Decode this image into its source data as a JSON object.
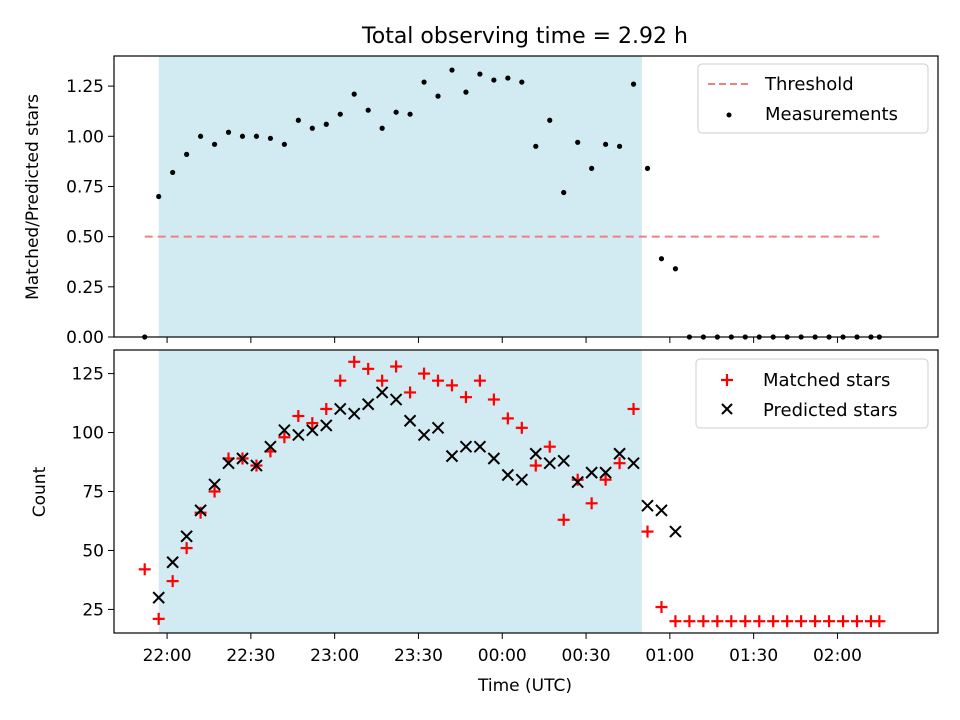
{
  "figure": {
    "title": "Total observing time = 2.92 h",
    "xlabel": "Time (UTC)",
    "x_ticks": [
      "22:00",
      "22:30",
      "23:00",
      "23:30",
      "00:00",
      "00:30",
      "01:00",
      "01:30",
      "02:00"
    ]
  },
  "chart_data": [
    {
      "type": "scatter",
      "panel": "top",
      "ylabel": "Matched/Predicted stars",
      "ylim": [
        0,
        1.4
      ],
      "y_ticks": [
        "0.00",
        "0.25",
        "0.50",
        "0.75",
        "1.00",
        "1.25"
      ],
      "y_tick_values": [
        0,
        0.25,
        0.5,
        0.75,
        1.0,
        1.25
      ],
      "xlim": [
        "21:41",
        "02:36"
      ],
      "shaded_region": {
        "from": "21:57",
        "to": "00:50",
        "color": "#add8e6"
      },
      "legend_position": "upper right",
      "threshold": {
        "name": "Threshold",
        "value": 0.5,
        "x_from": "21:52",
        "x_to": "02:15",
        "color": "#f08080",
        "style": "dashed"
      },
      "series": [
        {
          "name": "Measurements",
          "color": "#000000",
          "marker": "dot",
          "x": [
            "21:52",
            "21:57",
            "22:02",
            "22:07",
            "22:12",
            "22:17",
            "22:22",
            "22:27",
            "22:32",
            "22:37",
            "22:42",
            "22:47",
            "22:52",
            "22:57",
            "23:02",
            "23:07",
            "23:12",
            "23:17",
            "23:22",
            "23:27",
            "23:32",
            "23:37",
            "23:42",
            "23:47",
            "23:52",
            "23:57",
            "00:02",
            "00:07",
            "00:12",
            "00:17",
            "00:22",
            "00:27",
            "00:32",
            "00:37",
            "00:42",
            "00:47",
            "00:52",
            "00:57",
            "01:02",
            "01:07",
            "01:12",
            "01:17",
            "01:22",
            "01:27",
            "01:32",
            "01:37",
            "01:42",
            "01:47",
            "01:52",
            "01:57",
            "02:02",
            "02:07",
            "02:12",
            "02:15"
          ],
          "y": [
            0.0,
            0.7,
            0.82,
            0.91,
            1.0,
            0.96,
            1.02,
            1.0,
            1.0,
            0.99,
            0.96,
            1.08,
            1.04,
            1.06,
            1.11,
            1.21,
            1.13,
            1.04,
            1.12,
            1.11,
            1.27,
            1.2,
            1.33,
            1.22,
            1.31,
            1.28,
            1.29,
            1.27,
            0.95,
            1.08,
            0.72,
            0.97,
            0.84,
            0.96,
            0.95,
            1.26,
            0.84,
            0.39,
            0.34,
            0,
            0,
            0,
            0,
            0,
            0,
            0,
            0,
            0,
            0,
            0,
            0,
            0,
            0,
            0
          ]
        }
      ]
    },
    {
      "type": "scatter",
      "panel": "bottom",
      "ylabel": "Count",
      "ylim": [
        15,
        135
      ],
      "y_ticks": [
        "25",
        "50",
        "75",
        "100",
        "125"
      ],
      "y_tick_values": [
        25,
        50,
        75,
        100,
        125
      ],
      "xlim": [
        "21:41",
        "02:36"
      ],
      "shaded_region": {
        "from": "21:57",
        "to": "00:50",
        "color": "#add8e6"
      },
      "legend_position": "upper right",
      "series": [
        {
          "name": "Matched stars",
          "color": "#ff0000",
          "marker": "plus",
          "x": [
            "21:52",
            "21:57",
            "22:02",
            "22:07",
            "22:12",
            "22:17",
            "22:22",
            "22:27",
            "22:32",
            "22:37",
            "22:42",
            "22:47",
            "22:52",
            "22:57",
            "23:02",
            "23:07",
            "23:12",
            "23:17",
            "23:22",
            "23:27",
            "23:32",
            "23:37",
            "23:42",
            "23:47",
            "23:52",
            "23:57",
            "00:02",
            "00:07",
            "00:12",
            "00:17",
            "00:22",
            "00:27",
            "00:32",
            "00:37",
            "00:42",
            "00:47",
            "00:52",
            "00:57",
            "01:02",
            "01:07",
            "01:12",
            "01:17",
            "01:22",
            "01:27",
            "01:32",
            "01:37",
            "01:42",
            "01:47",
            "01:52",
            "01:57",
            "02:02",
            "02:07",
            "02:12",
            "02:15"
          ],
          "y": [
            42,
            21,
            37,
            51,
            66,
            75,
            89,
            89,
            86,
            92,
            98,
            107,
            104,
            110,
            122,
            130,
            127,
            122,
            128,
            117,
            125,
            122,
            120,
            115,
            122,
            114,
            106,
            102,
            86,
            94,
            63,
            80,
            70,
            80,
            87,
            110,
            58,
            26,
            20,
            20,
            20,
            20,
            20,
            20,
            20,
            20,
            20,
            20,
            20,
            20,
            20,
            20,
            20,
            20
          ]
        },
        {
          "name": "Predicted stars",
          "color": "#000000",
          "marker": "x",
          "x": [
            "21:57",
            "22:02",
            "22:07",
            "22:12",
            "22:17",
            "22:22",
            "22:27",
            "22:32",
            "22:37",
            "22:42",
            "22:47",
            "22:52",
            "22:57",
            "23:02",
            "23:07",
            "23:12",
            "23:17",
            "23:22",
            "23:27",
            "23:32",
            "23:37",
            "23:42",
            "23:47",
            "23:52",
            "23:57",
            "00:02",
            "00:07",
            "00:12",
            "00:17",
            "00:22",
            "00:27",
            "00:32",
            "00:37",
            "00:42",
            "00:47",
            "00:52",
            "00:57",
            "01:02"
          ],
          "y": [
            30,
            45,
            56,
            67,
            78,
            87,
            89,
            86,
            94,
            101,
            99,
            101,
            103,
            110,
            108,
            112,
            117,
            114,
            105,
            99,
            102,
            90,
            94,
            94,
            89,
            82,
            80,
            91,
            87,
            88,
            79,
            83,
            83,
            91,
            87,
            69,
            67,
            58
          ]
        }
      ]
    }
  ]
}
